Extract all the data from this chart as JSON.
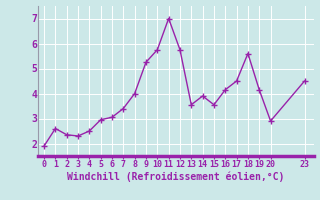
{
  "x": [
    0,
    1,
    2,
    3,
    4,
    5,
    6,
    7,
    8,
    9,
    10,
    11,
    12,
    13,
    14,
    15,
    16,
    17,
    18,
    19,
    20,
    23
  ],
  "y": [
    1.9,
    2.6,
    2.35,
    2.3,
    2.5,
    2.95,
    3.05,
    3.4,
    4.0,
    5.25,
    5.75,
    7.0,
    5.75,
    3.55,
    3.9,
    3.55,
    4.15,
    4.5,
    5.6,
    4.15,
    2.9,
    4.5
  ],
  "line_color": "#9922aa",
  "marker": "+",
  "marker_size": 4,
  "linewidth": 1.0,
  "bg_color": "#cce8e8",
  "grid_color": "#b8d8d8",
  "xlabel": "Windchill (Refroidissement éolien,°C)",
  "xlabel_color": "#9922aa",
  "xlabel_fontsize": 7,
  "tick_color": "#9922aa",
  "tick_fontsize": 6,
  "xlim": [
    -0.5,
    23.8
  ],
  "ylim": [
    1.5,
    7.5
  ],
  "yticks": [
    2,
    3,
    4,
    5,
    6,
    7
  ],
  "xticks": [
    0,
    1,
    2,
    3,
    4,
    5,
    6,
    7,
    8,
    9,
    10,
    11,
    12,
    13,
    14,
    15,
    16,
    17,
    18,
    19,
    20,
    23
  ],
  "xtick_labels": [
    "0",
    "1",
    "2",
    "3",
    "4",
    "5",
    "6",
    "7",
    "8",
    "9",
    "10",
    "11",
    "12",
    "13",
    "14",
    "15",
    "16",
    "17",
    "18",
    "19",
    "20",
    "23"
  ],
  "bottom_bar_color": "#9922aa",
  "spine_color": "#9999aa"
}
